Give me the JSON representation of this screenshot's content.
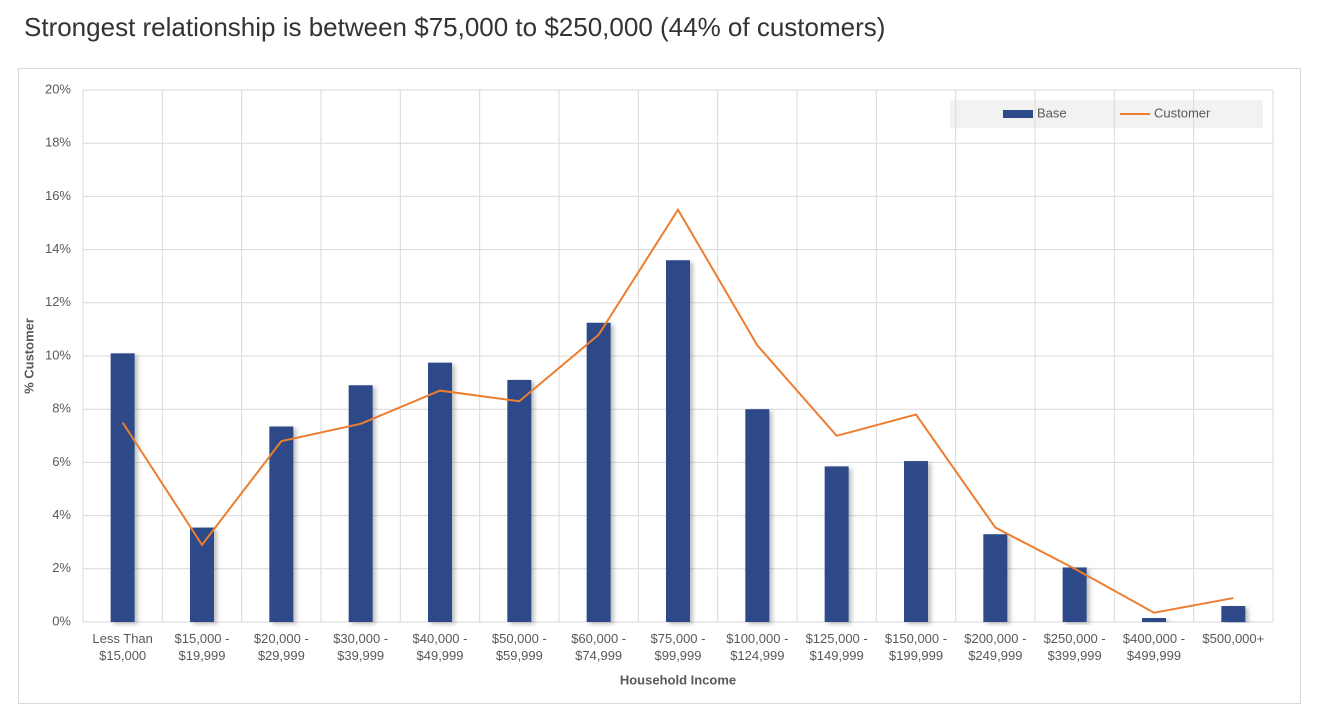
{
  "chart_data": {
    "type": "bar-line",
    "title": "Strongest relationship is between $75,000 to $250,000 (44% of customers)",
    "x_label": "Household Income",
    "y_label": "% Customer",
    "categories": [
      "Less Than\n$15,000",
      "$15,000 -\n$19,999",
      "$20,000 -\n$29,999",
      "$30,000 -\n$39,999",
      "$40,000 -\n$49,999",
      "$50,000 -\n$59,999",
      "$60,000 -\n$74,999",
      "$75,000 -\n$99,999",
      "$100,000 -\n$124,999",
      "$125,000 -\n$149,999",
      "$150,000 -\n$199,999",
      "$200,000 -\n$249,999",
      "$250,000 -\n$399,999",
      "$400,000 -\n$499,999",
      "$500,000+"
    ],
    "series": [
      {
        "name": "Base",
        "type": "bar",
        "color": "#2e4a87",
        "values": [
          10.1,
          3.55,
          7.35,
          8.9,
          9.75,
          9.1,
          11.25,
          13.6,
          8.0,
          5.85,
          6.05,
          3.3,
          2.05,
          0.15,
          0.6
        ]
      },
      {
        "name": "Customer",
        "type": "line",
        "color": "#ed7d31",
        "values": [
          7.5,
          2.9,
          6.8,
          7.45,
          8.7,
          8.3,
          10.8,
          15.5,
          10.4,
          7.0,
          7.8,
          3.55,
          2.0,
          0.35,
          0.9
        ]
      }
    ],
    "ylim": [
      0,
      20
    ],
    "yticks": [
      {
        "value": 0,
        "label": "0%"
      },
      {
        "value": 2,
        "label": "2%"
      },
      {
        "value": 4,
        "label": "4%"
      },
      {
        "value": 6,
        "label": "6%"
      },
      {
        "value": 8,
        "label": "8%"
      },
      {
        "value": 10,
        "label": "10%"
      },
      {
        "value": 12,
        "label": "12%"
      },
      {
        "value": 14,
        "label": "14%"
      },
      {
        "value": 16,
        "label": "16%"
      },
      {
        "value": 18,
        "label": "18%"
      },
      {
        "value": 20,
        "label": "20%"
      }
    ],
    "grid": true,
    "legend": "top-right"
  }
}
